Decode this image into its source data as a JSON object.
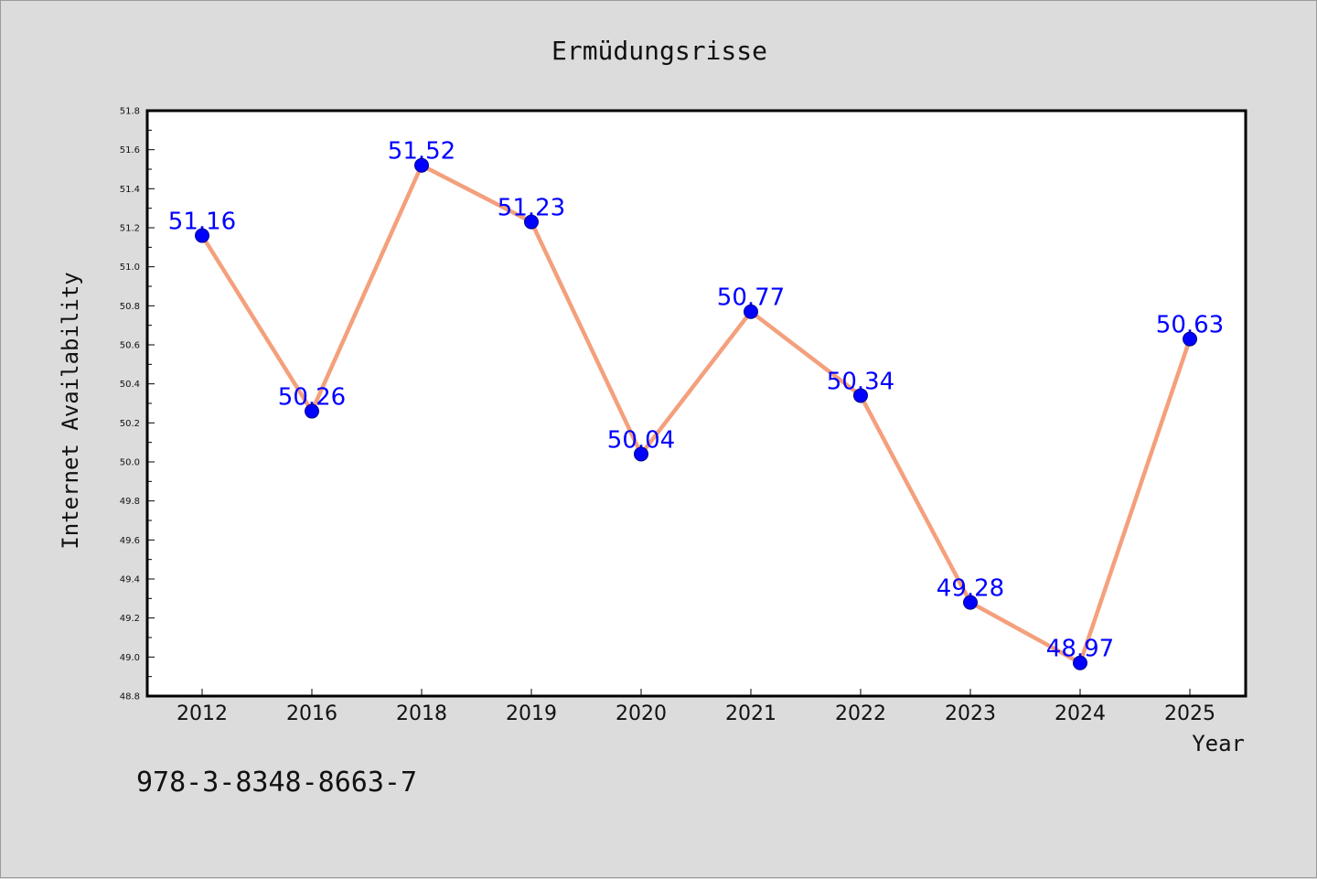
{
  "colors": {
    "background": "#dcdcdc",
    "plot_background": "#ffffff",
    "line": "#f4a07c",
    "marker": "#0000ff",
    "data_label": "#0000ff"
  },
  "footer": {
    "isbn": "978-3-8348-8663-7"
  },
  "chart_data": {
    "type": "line",
    "title": "Ermüdungsrisse",
    "xlabel": "Year",
    "ylabel": "Internet Availability",
    "categories": [
      "2012",
      "2016",
      "2018",
      "2019",
      "2020",
      "2021",
      "2022",
      "2023",
      "2024",
      "2025"
    ],
    "values": [
      51.16,
      50.26,
      51.52,
      51.23,
      50.04,
      50.77,
      50.34,
      49.28,
      48.97,
      50.63
    ],
    "data_labels": [
      "51.16",
      "50.26",
      "51.52",
      "51.23",
      "50.04",
      "50.77",
      "50.34",
      "49.28",
      "48.97",
      "50.63"
    ],
    "ylim": [
      48.8,
      51.8
    ],
    "yticks": [
      "48.8",
      "49.0",
      "49.2",
      "49.4",
      "49.6",
      "49.8",
      "50.0",
      "50.2",
      "50.4",
      "50.6",
      "50.8",
      "51.0",
      "51.2",
      "51.4",
      "51.6",
      "51.8"
    ],
    "grid": false,
    "legend": "none",
    "marker": "circle"
  }
}
